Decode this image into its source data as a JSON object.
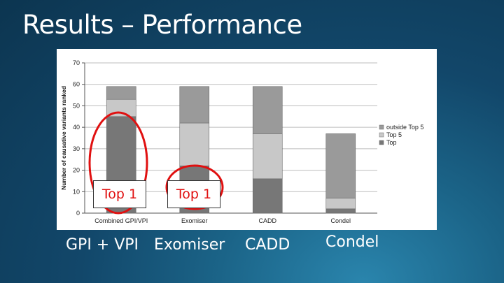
{
  "slide": {
    "title": "Results – Performance",
    "callout_text": "Top 1",
    "method_labels": [
      "GPI + VPI",
      "Exomiser",
      "CADD",
      "Condel"
    ]
  },
  "colors": {
    "top": "#777777",
    "top5": "#c8c8c8",
    "outside": "#9a9a9a",
    "highlight_ellipse": "#e01010"
  },
  "chart_data": {
    "type": "bar",
    "stacked": true,
    "categories": [
      "Combined GPI/VPI",
      "Exomiser",
      "CADD",
      "Condel"
    ],
    "series": [
      {
        "name": "Top",
        "values": [
          45,
          22,
          16,
          2
        ]
      },
      {
        "name": "Top 5",
        "values": [
          8,
          20,
          21,
          5
        ]
      },
      {
        "name": "outside Top 5",
        "values": [
          6,
          17,
          22,
          30
        ]
      }
    ],
    "xlabel": "",
    "ylabel": "Number of causative variants ranked",
    "ylim": [
      0,
      70
    ],
    "yticks": [
      0,
      10,
      20,
      30,
      40,
      50,
      60,
      70
    ],
    "grid": true,
    "legend_position": "right"
  }
}
